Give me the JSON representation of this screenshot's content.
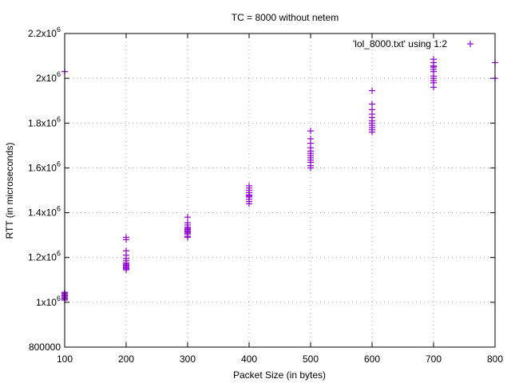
{
  "chart_data": {
    "type": "scatter",
    "title": "TC = 8000 without netem",
    "xlabel": "Packet Size (in bytes)",
    "ylabel": "RTT (in microseconds)",
    "xlim": [
      100,
      800
    ],
    "ylim": [
      800000,
      2200000
    ],
    "x_ticks": [
      "100",
      "200",
      "300",
      "400",
      "500",
      "600",
      "700",
      "800"
    ],
    "y_ticks": [
      {
        "mantissa": "800000",
        "exp": ""
      },
      {
        "mantissa": "1x10",
        "exp": "6"
      },
      {
        "mantissa": "1.2x10",
        "exp": "6"
      },
      {
        "mantissa": "1.4x10",
        "exp": "6"
      },
      {
        "mantissa": "1.6x10",
        "exp": "6"
      },
      {
        "mantissa": "1.8x10",
        "exp": "6"
      },
      {
        "mantissa": "2x10",
        "exp": "6"
      },
      {
        "mantissa": "2.2x10",
        "exp": "6"
      }
    ],
    "grid": true,
    "legend_position": "top-right",
    "color": "#9400d3",
    "series": [
      {
        "name": "'lol_8000.txt' using 1:2",
        "points": [
          [
            100,
            2030000
          ],
          [
            100,
            1045000
          ],
          [
            100,
            1040000
          ],
          [
            100,
            1035000
          ],
          [
            100,
            1030000
          ],
          [
            100,
            1025000
          ],
          [
            100,
            1020000
          ],
          [
            100,
            1015000
          ],
          [
            100,
            1010000
          ],
          [
            200,
            1290000
          ],
          [
            200,
            1280000
          ],
          [
            200,
            1230000
          ],
          [
            200,
            1210000
          ],
          [
            200,
            1195000
          ],
          [
            200,
            1185000
          ],
          [
            200,
            1175000
          ],
          [
            200,
            1170000
          ],
          [
            200,
            1165000
          ],
          [
            200,
            1160000
          ],
          [
            200,
            1155000
          ],
          [
            200,
            1150000
          ],
          [
            200,
            1145000
          ],
          [
            300,
            1380000
          ],
          [
            300,
            1355000
          ],
          [
            300,
            1345000
          ],
          [
            300,
            1335000
          ],
          [
            300,
            1330000
          ],
          [
            300,
            1325000
          ],
          [
            300,
            1320000
          ],
          [
            300,
            1315000
          ],
          [
            300,
            1310000
          ],
          [
            300,
            1305000
          ],
          [
            300,
            1295000
          ],
          [
            300,
            1290000
          ],
          [
            400,
            1520000
          ],
          [
            400,
            1510000
          ],
          [
            400,
            1500000
          ],
          [
            400,
            1490000
          ],
          [
            400,
            1480000
          ],
          [
            400,
            1475000
          ],
          [
            400,
            1470000
          ],
          [
            400,
            1460000
          ],
          [
            400,
            1450000
          ],
          [
            400,
            1440000
          ],
          [
            500,
            1765000
          ],
          [
            500,
            1730000
          ],
          [
            500,
            1710000
          ],
          [
            500,
            1690000
          ],
          [
            500,
            1675000
          ],
          [
            500,
            1665000
          ],
          [
            500,
            1655000
          ],
          [
            500,
            1645000
          ],
          [
            500,
            1635000
          ],
          [
            500,
            1625000
          ],
          [
            500,
            1610000
          ],
          [
            500,
            1600000
          ],
          [
            600,
            1945000
          ],
          [
            600,
            1885000
          ],
          [
            600,
            1860000
          ],
          [
            600,
            1840000
          ],
          [
            600,
            1825000
          ],
          [
            600,
            1810000
          ],
          [
            600,
            1800000
          ],
          [
            600,
            1790000
          ],
          [
            600,
            1780000
          ],
          [
            600,
            1770000
          ],
          [
            600,
            1760000
          ],
          [
            700,
            2085000
          ],
          [
            700,
            2070000
          ],
          [
            700,
            2055000
          ],
          [
            700,
            2050000
          ],
          [
            700,
            2040000
          ],
          [
            700,
            2030000
          ],
          [
            700,
            2010000
          ],
          [
            700,
            2000000
          ],
          [
            700,
            1990000
          ],
          [
            700,
            1980000
          ],
          [
            700,
            1960000
          ],
          [
            800,
            2070000
          ],
          [
            800,
            2000000
          ]
        ]
      }
    ]
  }
}
